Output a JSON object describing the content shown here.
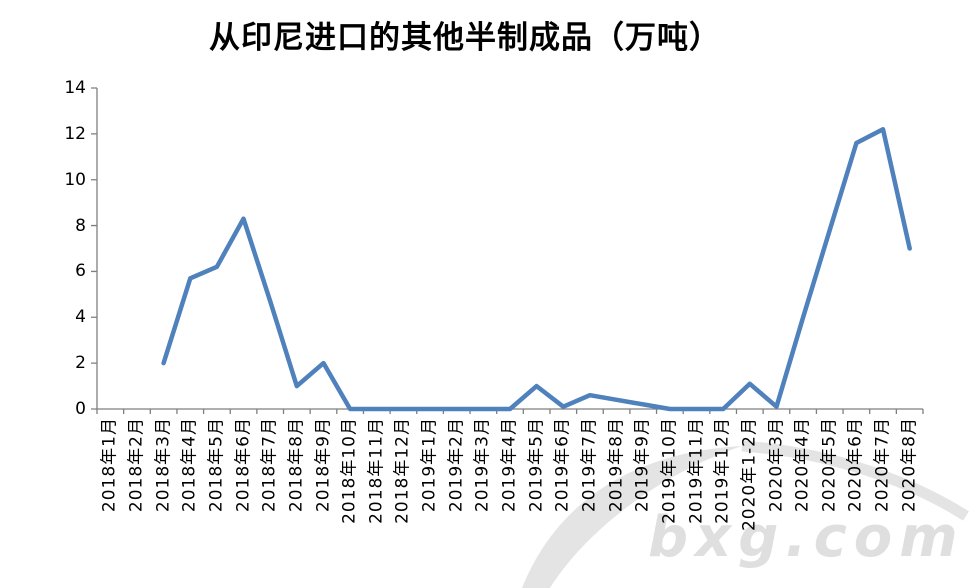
{
  "page": {
    "background": "#ffffff"
  },
  "chart_data": {
    "type": "line",
    "title": "从印尼进口的其他半制成品（万吨）",
    "categories": [
      "2018年1月",
      "2018年2月",
      "2018年3月",
      "2018年4月",
      "2018年5月",
      "2018年6月",
      "2018年7月",
      "2018年8月",
      "2018年9月",
      "2018年10月",
      "2018年11月",
      "2018年12月",
      "2019年1月",
      "2019年2月",
      "2019年3月",
      "2019年4月",
      "2019年5月",
      "2019年6月",
      "2019年7月",
      "2019年8月",
      "2019年9月",
      "2019年10月",
      "2019年11月",
      "2019年12月",
      "2020年1-2月",
      "2020年3月",
      "2020年4月",
      "2020年5月",
      "2020年6月",
      "2020年7月",
      "2020年8月"
    ],
    "values": [
      null,
      null,
      2.0,
      5.7,
      6.2,
      8.3,
      4.7,
      1.0,
      2.0,
      0,
      0,
      0,
      0,
      0,
      0,
      0,
      1.0,
      0.1,
      0.6,
      0.4,
      0.2,
      0,
      0,
      0,
      1.1,
      0.1,
      4.0,
      7.8,
      11.6,
      12.2,
      7.0
    ],
    "xlabel": "",
    "ylabel": "",
    "ylim": [
      0,
      14
    ],
    "yticks": [
      0,
      2,
      4,
      6,
      8,
      10,
      12,
      14
    ],
    "grid": false,
    "legend": "none",
    "line_color": "#4F81BD",
    "axis_color": "#7F7F7F"
  },
  "watermark": {
    "text": "bxg.com",
    "color": "#d5d5d5"
  }
}
